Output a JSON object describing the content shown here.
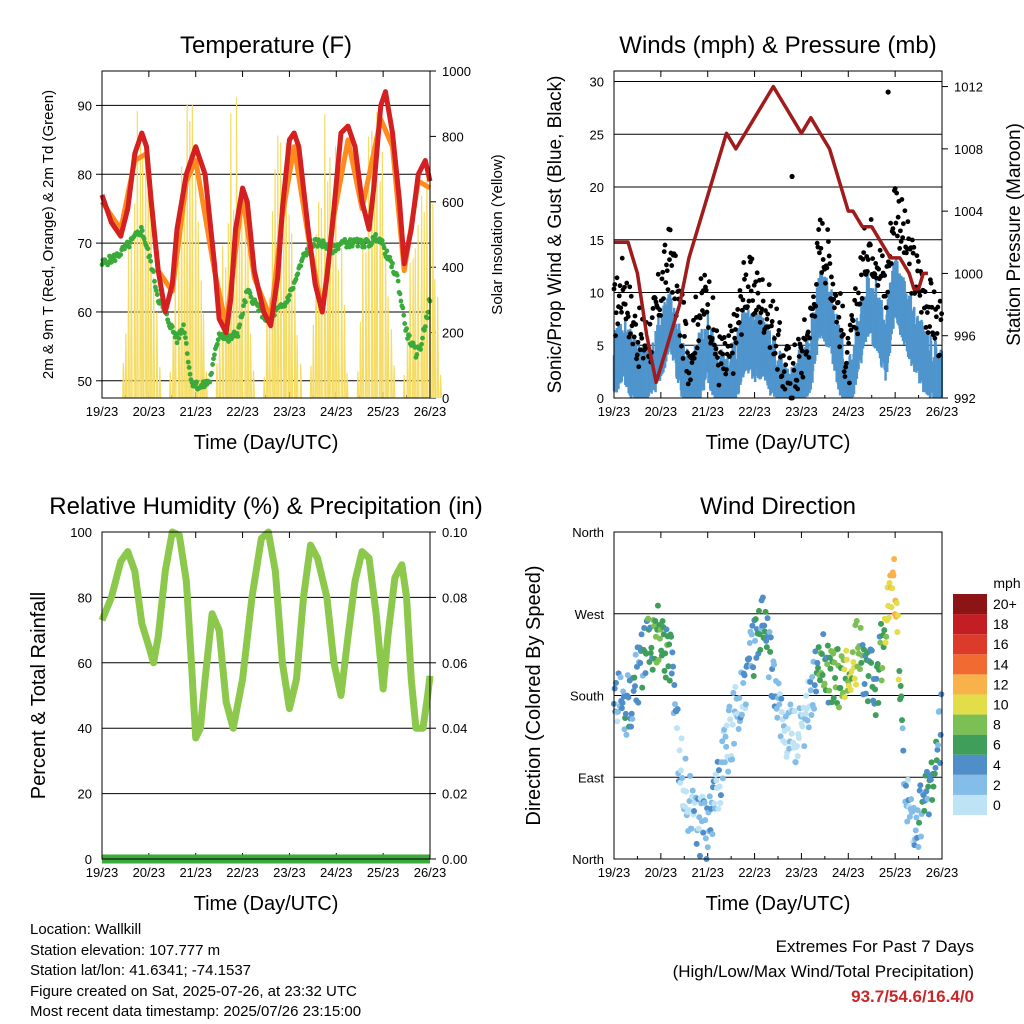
{
  "x_tick_labels": [
    "19/23",
    "20/23",
    "21/23",
    "22/23",
    "23/23",
    "24/23",
    "25/23",
    "26/23"
  ],
  "x_axis_label": "Time (Day/UTC)",
  "info": {
    "location": "Location: Wallkill",
    "elevation": "Station elevation: 107.777 m",
    "latlon": "Station lat/lon: 41.6341; -74.1537",
    "created": "Figure created on Sat, 2025-07-26, at 23:32 UTC",
    "latest": "Most recent data timestamp: 2025/07/26 23:15:00"
  },
  "extremes": {
    "title": "Extremes For Past 7 Days",
    "subtitle": "(High/Low/Max Wind/Total Precipitation)",
    "values": "93.7/54.6/16.4/0",
    "color": "#c8282a"
  },
  "chart_data": [
    {
      "type": "line",
      "title": "Temperature (F)",
      "xlabel": "Time (Day/UTC)",
      "ylabel": "2m & 9m T (Red, Orange) & 2m Td (Green)",
      "ylabel_right": "Solar Insolation (Yellow)",
      "x_unit": "days since 19/23 UTC",
      "xlim": [
        0,
        7
      ],
      "ylim": [
        47.5,
        95
      ],
      "yticks": [
        50,
        60,
        70,
        80,
        90
      ],
      "ylim_right": [
        0,
        1000
      ],
      "yticks_right": [
        0,
        200,
        400,
        600,
        800,
        1000
      ],
      "series": [
        {
          "name": "2m T",
          "color": "#d42020",
          "axis": "left",
          "x": [
            0,
            0.2,
            0.4,
            0.55,
            0.7,
            0.85,
            0.95,
            1.05,
            1.2,
            1.35,
            1.5,
            1.6,
            1.8,
            2.0,
            2.2,
            2.4,
            2.5,
            2.65,
            2.75,
            2.85,
            3.0,
            3.1,
            3.25,
            3.45,
            3.6,
            3.75,
            3.85,
            4.0,
            4.1,
            4.2,
            4.4,
            4.55,
            4.7,
            4.8,
            4.95,
            5.1,
            5.25,
            5.4,
            5.55,
            5.7,
            5.8,
            5.95,
            6.05,
            6.2,
            6.35,
            6.45,
            6.6,
            6.75,
            6.9,
            7.0
          ],
          "y": [
            77,
            73,
            71,
            75,
            83,
            86,
            84,
            76,
            66,
            60,
            64,
            72,
            80,
            84,
            80,
            67,
            59,
            57,
            62,
            72,
            78,
            76,
            66,
            60,
            58,
            65,
            75,
            85,
            86,
            84,
            72,
            64,
            60,
            65,
            75,
            86,
            87,
            84,
            76,
            72,
            78,
            90,
            92,
            86,
            76,
            67,
            72,
            80,
            82,
            79
          ]
        },
        {
          "name": "9m T",
          "color": "#ff8a1e",
          "axis": "left",
          "x": [
            0,
            0.4,
            0.7,
            0.95,
            1.2,
            1.5,
            1.8,
            2.0,
            2.4,
            2.65,
            3.0,
            3.25,
            3.6,
            3.85,
            4.1,
            4.4,
            4.7,
            4.95,
            5.25,
            5.55,
            5.95,
            6.2,
            6.45,
            6.75,
            7.0
          ],
          "y": [
            76,
            72,
            82,
            83,
            66,
            63,
            79,
            82,
            66,
            58,
            77,
            65,
            59,
            74,
            84,
            71,
            60,
            74,
            85,
            75,
            88,
            84,
            66,
            79,
            78
          ]
        },
        {
          "name": "2m Td",
          "color": "#3aaa3a",
          "axis": "left",
          "x": [
            0,
            0.3,
            0.6,
            0.85,
            1.05,
            1.2,
            1.4,
            1.6,
            1.75,
            1.9,
            2.1,
            2.3,
            2.5,
            2.7,
            2.9,
            3.1,
            3.3,
            3.5,
            3.7,
            3.9,
            4.1,
            4.3,
            4.5,
            4.7,
            4.9,
            5.1,
            5.3,
            5.5,
            5.7,
            5.9,
            6.1,
            6.3,
            6.5,
            6.7,
            6.8,
            6.95,
            7.0
          ],
          "y": [
            67,
            68,
            70,
            72,
            67,
            62,
            59,
            56,
            58,
            50,
            49,
            50,
            57,
            56,
            57,
            63,
            61,
            59,
            60,
            61,
            64,
            68,
            70,
            70,
            69,
            70,
            70,
            70,
            70,
            71,
            68,
            65,
            57,
            54,
            55,
            60,
            62
          ]
        },
        {
          "name": "Solar Insolation",
          "color": "#f5dc64",
          "axis": "right",
          "peaks_x": [
            0.85,
            1.85,
            2.85,
            3.85,
            4.85,
            5.85,
            6.85
          ],
          "peaks_y": [
            1000,
            1000,
            1000,
            980,
            950,
            1000,
            950
          ]
        }
      ]
    },
    {
      "type": "scatter",
      "title": "Winds (mph) & Pressure (mb)",
      "xlabel": "Time (Day/UTC)",
      "ylabel": "Sonic/Prop Wind & Gust (Blue, Black)",
      "ylabel_right": "Station Pressure (Maroon)",
      "x_unit": "days since 19/23 UTC",
      "xlim": [
        0,
        7
      ],
      "ylim": [
        0,
        31
      ],
      "yticks": [
        0,
        5,
        10,
        15,
        20,
        25,
        30
      ],
      "ylim_right": [
        992,
        1013
      ],
      "yticks_right": [
        992,
        996,
        1000,
        1004,
        1008,
        1012
      ],
      "series": [
        {
          "name": "Pressure",
          "color": "#a01c1c",
          "axis": "right",
          "type": "line",
          "x": [
            0,
            0.3,
            0.5,
            0.7,
            0.9,
            1.0,
            1.2,
            1.4,
            1.6,
            1.8,
            2.0,
            2.2,
            2.4,
            2.6,
            2.8,
            3.0,
            3.2,
            3.4,
            3.6,
            3.8,
            4.0,
            4.2,
            4.4,
            4.6,
            4.8,
            5.0,
            5.1,
            5.3,
            5.5,
            5.7,
            5.9,
            6.1,
            6.3,
            6.4,
            6.5,
            6.6,
            6.7
          ],
          "y": [
            1002,
            1002,
            1000,
            996,
            993,
            994,
            996,
            998,
            1001,
            1003,
            1005,
            1007,
            1009,
            1008,
            1009,
            1010,
            1011,
            1012,
            1011,
            1010,
            1009,
            1010,
            1009,
            1008,
            1006,
            1004,
            1004,
            1003,
            1003,
            1002,
            1001,
            1001,
            1000,
            999,
            999,
            1000,
            1000
          ]
        },
        {
          "name": "Gust",
          "color": "#000000",
          "axis": "left",
          "x": [
            0,
            0.2,
            0.4,
            0.6,
            0.8,
            1.0,
            1.2,
            1.4,
            1.6,
            1.8,
            2.0,
            2.2,
            2.4,
            2.6,
            2.8,
            3.0,
            3.2,
            3.4,
            3.6,
            3.8,
            4.0,
            4.2,
            4.4,
            4.6,
            4.8,
            5.0,
            5.2,
            5.4,
            5.6,
            5.8,
            6.0,
            6.2,
            6.4,
            6.6,
            6.8,
            7.0
          ],
          "y": [
            8,
            11,
            7,
            5,
            6,
            10,
            14,
            8,
            4,
            8,
            10,
            4,
            3,
            6,
            11,
            10,
            9,
            7,
            3,
            2,
            4,
            7,
            15,
            13,
            8,
            3,
            9,
            15,
            14,
            10,
            19,
            15,
            12,
            10,
            8,
            6
          ]
        },
        {
          "name": "Wind",
          "color": "#4f94cd",
          "axis": "left",
          "x": [
            0,
            0.2,
            0.4,
            0.6,
            0.8,
            1.0,
            1.2,
            1.4,
            1.6,
            1.8,
            2.0,
            2.2,
            2.4,
            2.6,
            2.8,
            3.0,
            3.2,
            3.4,
            3.6,
            3.8,
            4.0,
            4.2,
            4.4,
            4.6,
            4.8,
            5.0,
            5.2,
            5.4,
            5.6,
            5.8,
            6.0,
            6.2,
            6.4,
            6.6,
            6.8,
            7.0
          ],
          "y": [
            3,
            5,
            3,
            2,
            3,
            5,
            8,
            4,
            1,
            3,
            5,
            2,
            1,
            3,
            6,
            5,
            5,
            3,
            1,
            0,
            2,
            4,
            9,
            8,
            4,
            1,
            5,
            9,
            8,
            5,
            11,
            8,
            6,
            4,
            3,
            2
          ]
        }
      ]
    },
    {
      "type": "line",
      "title": "Relative Humidity (%) & Precipitation (in)",
      "xlabel": "Time (Day/UTC)",
      "ylabel": "Percent & Total Rainfall",
      "x_unit": "days since 19/23 UTC",
      "xlim": [
        0,
        7
      ],
      "ylim": [
        0,
        100
      ],
      "yticks": [
        0,
        20,
        40,
        60,
        80,
        100
      ],
      "ylim_right": [
        0,
        0.1
      ],
      "yticks_right": [
        "0.00",
        "0.02",
        "0.04",
        "0.06",
        "0.08",
        "0.10"
      ],
      "series": [
        {
          "name": "Relative Humidity",
          "color": "#8cc84b",
          "axis": "left",
          "x": [
            0,
            0.2,
            0.4,
            0.55,
            0.7,
            0.85,
            1.0,
            1.1,
            1.2,
            1.35,
            1.5,
            1.65,
            1.8,
            1.9,
            2.0,
            2.1,
            2.2,
            2.35,
            2.5,
            2.65,
            2.8,
            3.0,
            3.2,
            3.4,
            3.55,
            3.7,
            3.85,
            4.0,
            4.15,
            4.3,
            4.45,
            4.6,
            4.8,
            4.95,
            5.1,
            5.25,
            5.4,
            5.55,
            5.7,
            5.85,
            6.0,
            6.1,
            6.25,
            6.4,
            6.5,
            6.6,
            6.7,
            6.85,
            6.95,
            7.0
          ],
          "y": [
            73,
            80,
            91,
            94,
            88,
            72,
            65,
            60,
            68,
            88,
            100,
            99,
            85,
            62,
            37,
            40,
            55,
            75,
            70,
            48,
            40,
            55,
            80,
            98,
            100,
            88,
            60,
            46,
            55,
            80,
            96,
            92,
            80,
            60,
            50,
            68,
            85,
            94,
            92,
            75,
            52,
            68,
            86,
            90,
            80,
            55,
            40,
            40,
            50,
            56
          ]
        },
        {
          "name": "Total Precipitation",
          "color": "#3aaa3a",
          "axis": "right",
          "x": [
            0,
            7
          ],
          "y": [
            0,
            0
          ]
        }
      ]
    },
    {
      "type": "scatter",
      "title": "Wind Direction",
      "xlabel": "Time (Day/UTC)",
      "ylabel": "Direction (Colored By Speed)",
      "x_unit": "days since 19/23 UTC",
      "xlim": [
        0,
        7
      ],
      "yticks": [
        "North",
        "East",
        "South",
        "West",
        "North"
      ],
      "colorbar": {
        "title": "mph",
        "labels": [
          "0",
          "2",
          "4",
          "6",
          "8",
          "10",
          "12",
          "14",
          "16",
          "18",
          "20+"
        ],
        "colors": [
          "#bde3f5",
          "#83bde8",
          "#4f8ec8",
          "#3f9e5a",
          "#7cc055",
          "#e3dd4a",
          "#f9b24a",
          "#f06a32",
          "#dc3a2a",
          "#c21e24",
          "#8c1414"
        ]
      }
    }
  ]
}
